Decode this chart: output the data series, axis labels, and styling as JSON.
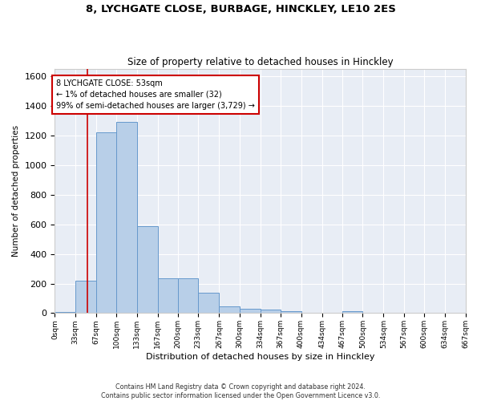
{
  "title_line1": "8, LYCHGATE CLOSE, BURBAGE, HINCKLEY, LE10 2ES",
  "title_line2": "Size of property relative to detached houses in Hinckley",
  "xlabel": "Distribution of detached houses by size in Hinckley",
  "ylabel": "Number of detached properties",
  "bar_color": "#b8cfe8",
  "bar_edge_color": "#6699cc",
  "annotation_box_color": "#cc0000",
  "annotation_text_line1": "8 LYCHGATE CLOSE: 53sqm",
  "annotation_text_line2": "← 1% of detached houses are smaller (32)",
  "annotation_text_line3": "99% of semi-detached houses are larger (3,729) →",
  "vline_x": 53,
  "vline_color": "#cc0000",
  "bin_edges": [
    0,
    33,
    67,
    100,
    133,
    167,
    200,
    233,
    267,
    300,
    334,
    367,
    400,
    434,
    467,
    500,
    534,
    567,
    600,
    634,
    667
  ],
  "bar_heights": [
    10,
    220,
    1220,
    1290,
    590,
    235,
    235,
    140,
    45,
    30,
    25,
    15,
    0,
    0,
    15,
    0,
    0,
    0,
    0,
    0
  ],
  "ylim": [
    0,
    1650
  ],
  "yticks": [
    0,
    200,
    400,
    600,
    800,
    1000,
    1200,
    1400,
    1600
  ],
  "background_color": "#e8edf5",
  "grid_color": "#ffffff",
  "footer_line1": "Contains HM Land Registry data © Crown copyright and database right 2024.",
  "footer_line2": "Contains public sector information licensed under the Open Government Licence v3.0."
}
